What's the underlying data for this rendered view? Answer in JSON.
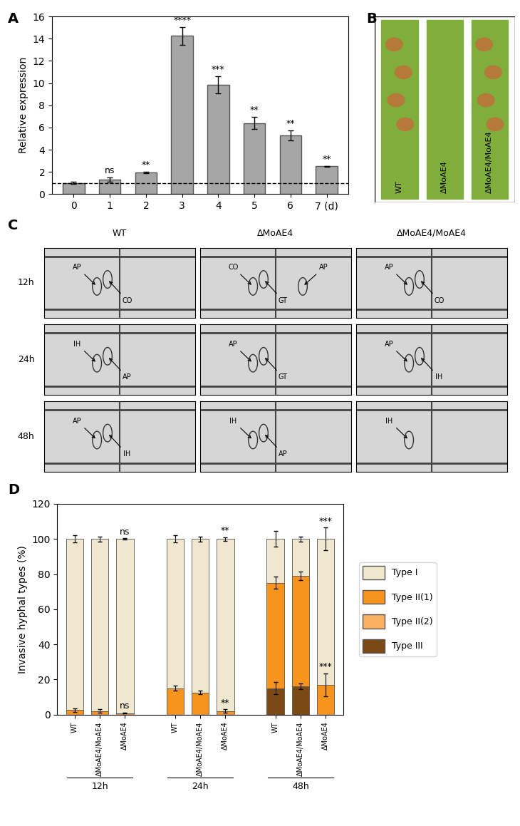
{
  "panel_labels": [
    "A",
    "B",
    "C",
    "D"
  ],
  "chart_data": [
    {
      "type": "bar",
      "categories": [
        "0",
        "1",
        "2",
        "3",
        "4",
        "5",
        "6",
        "7 (d)"
      ],
      "values": [
        1.0,
        1.3,
        1.95,
        14.25,
        9.85,
        6.4,
        5.3,
        2.5
      ],
      "errors": [
        0.1,
        0.2,
        0.05,
        0.8,
        0.75,
        0.55,
        0.45,
        0.05
      ],
      "significance": [
        null,
        "ns",
        "**",
        "****",
        "***",
        "**",
        "**",
        "**"
      ],
      "baseline": 1,
      "color": "#a6a6a6",
      "ylabel": "Relative expression",
      "ylim": [
        0,
        16
      ],
      "yticks": [
        0,
        2,
        4,
        6,
        8,
        10,
        12,
        14,
        16
      ]
    },
    {
      "type": "bar",
      "stacked": true,
      "ylabel": "Invasive hyphal types (%)",
      "groups": [
        "12h",
        "24h",
        "48h"
      ],
      "categories": [
        "WT",
        "ΔMoAE4/MoAE4",
        "ΔMoAE4",
        "WT",
        "ΔMoAE4/MoAE4",
        "ΔMoAE4",
        "WT",
        "ΔMoAE4/MoAE4",
        "ΔMoAE4"
      ],
      "series": [
        {
          "name": "Type I",
          "color": "#efe8cf",
          "values": [
            97.5,
            98,
            99.2,
            85,
            87.5,
            98,
            25,
            21,
            83
          ],
          "errors": [
            2,
            1.5,
            0.5,
            2,
            1.5,
            1,
            4.5,
            1.5,
            6.5
          ]
        },
        {
          "name": "Type II(1)",
          "color": "#f7941d",
          "values": [
            2.5,
            2,
            0.8,
            15,
            12.5,
            2,
            60,
            63,
            17
          ],
          "errors": [
            1,
            1,
            0.3,
            1.5,
            1,
            1,
            3.5,
            2.5,
            6.5
          ]
        },
        {
          "name": "Type II(2)",
          "color": "#f9b060",
          "values": [
            0,
            0,
            0,
            0,
            0,
            0,
            0,
            0,
            0
          ],
          "errors": [
            0,
            0,
            0,
            0,
            0,
            0,
            0,
            0,
            0
          ]
        },
        {
          "name": "Type III",
          "color": "#7b4a14",
          "values": [
            0,
            0,
            0,
            0,
            0,
            0,
            15,
            16,
            0
          ],
          "errors": [
            0,
            0,
            0,
            0,
            0,
            0,
            3.5,
            1.5,
            0
          ]
        }
      ],
      "top_labels": [
        null,
        null,
        "ns",
        null,
        null,
        "**",
        null,
        null,
        "***"
      ],
      "segment_labels": [
        null,
        null,
        "ns",
        null,
        null,
        "**",
        null,
        null,
        "***"
      ],
      "ylim": [
        0,
        120
      ],
      "yticks": [
        0,
        20,
        40,
        60,
        80,
        100,
        120
      ],
      "legend": "right"
    }
  ],
  "leaf_photo": {
    "labels": [
      "WT",
      "ΔMoAE4",
      "ΔMoAE4/MoAE4"
    ]
  },
  "micrographs": {
    "columns": [
      "WT",
      "ΔMoAE4",
      "ΔMoAE4/MoAE4"
    ],
    "rows": [
      "12h",
      "24h",
      "48h"
    ],
    "cells": [
      [
        [
          "AP",
          "CO"
        ],
        [
          "CO",
          "GT",
          "AP"
        ],
        [
          "AP",
          "CO"
        ]
      ],
      [
        [
          "IH",
          "AP"
        ],
        [
          "AP",
          "GT"
        ],
        [
          "AP",
          "IH"
        ]
      ],
      [
        [
          "AP",
          "IH"
        ],
        [
          "IH",
          "AP"
        ],
        [
          "IH"
        ]
      ]
    ]
  }
}
